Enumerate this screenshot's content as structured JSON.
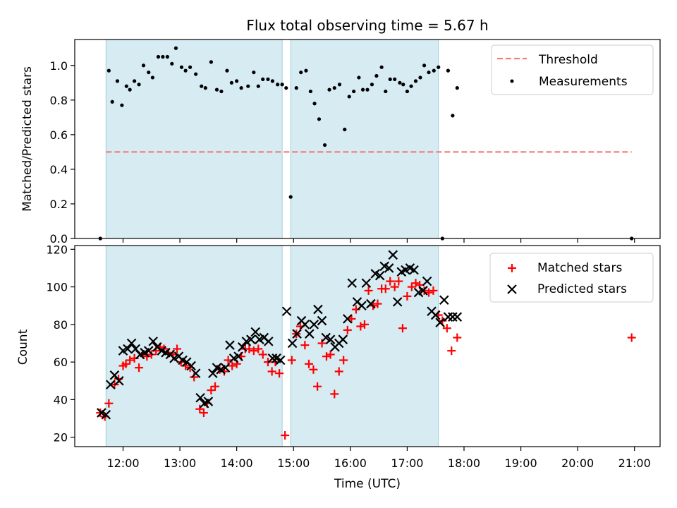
{
  "title": "Flux total observing time = 5.67 h",
  "chart_data": [
    {
      "type": "scatter",
      "panel": "top",
      "ylabel": "Matched/Predicted stars",
      "xlabel": "",
      "xlim": [
        11.15,
        21.45
      ],
      "ylim": [
        0.0,
        1.15
      ],
      "yticks": [
        0.0,
        0.2,
        0.4,
        0.6,
        0.8,
        1.0
      ],
      "ytick_labels": [
        "0.0",
        "0.2",
        "0.4",
        "0.6",
        "0.8",
        "1.0"
      ],
      "shaded_intervals": [
        [
          11.7,
          14.8
        ],
        [
          14.95,
          17.55
        ]
      ],
      "threshold": {
        "name": "Threshold",
        "value": 0.5,
        "x_range": [
          11.7,
          20.95
        ],
        "color": "#f08080"
      },
      "legend": {
        "position": "top-right",
        "entries": [
          "Threshold",
          "Measurements"
        ]
      },
      "series": [
        {
          "name": "Measurements",
          "color": "#000000",
          "marker": "dot",
          "x": [
            11.6,
            11.75,
            11.81,
            11.9,
            11.98,
            12.06,
            12.12,
            12.2,
            12.28,
            12.36,
            12.45,
            12.52,
            12.62,
            12.7,
            12.78,
            12.86,
            12.93,
            13.03,
            13.1,
            13.18,
            13.28,
            13.38,
            13.45,
            13.55,
            13.65,
            13.73,
            13.83,
            13.91,
            14.0,
            14.08,
            14.2,
            14.3,
            14.38,
            14.46,
            14.55,
            14.63,
            14.72,
            14.8,
            14.87,
            14.95,
            15.05,
            15.13,
            15.22,
            15.3,
            15.37,
            15.45,
            15.55,
            15.63,
            15.72,
            15.81,
            15.9,
            15.98,
            16.06,
            16.15,
            16.22,
            16.3,
            16.38,
            16.46,
            16.55,
            16.62,
            16.7,
            16.78,
            16.87,
            16.93,
            17.0,
            17.07,
            17.15,
            17.23,
            17.3,
            17.38,
            17.47,
            17.55,
            17.62,
            17.72,
            17.8,
            17.88,
            20.95
          ],
          "y": [
            0.0,
            0.97,
            0.79,
            0.91,
            0.77,
            0.88,
            0.86,
            0.91,
            0.89,
            1.0,
            0.96,
            0.93,
            1.05,
            1.05,
            1.05,
            1.01,
            1.1,
            0.99,
            0.97,
            0.99,
            0.95,
            0.88,
            0.87,
            1.02,
            0.86,
            0.85,
            0.97,
            0.9,
            0.91,
            0.87,
            0.88,
            0.96,
            0.88,
            0.92,
            0.92,
            0.91,
            0.89,
            0.89,
            0.87,
            0.24,
            0.87,
            0.96,
            0.97,
            0.85,
            0.78,
            0.69,
            0.54,
            0.86,
            0.87,
            0.89,
            0.63,
            0.82,
            0.85,
            0.93,
            0.86,
            0.86,
            0.89,
            0.94,
            0.99,
            0.85,
            0.92,
            0.92,
            0.9,
            0.89,
            0.85,
            0.88,
            0.91,
            0.93,
            1.0,
            0.96,
            0.97,
            0.99,
            0.0,
            0.97,
            0.71,
            0.87,
            0.0
          ]
        }
      ]
    },
    {
      "type": "scatter",
      "panel": "bottom",
      "ylabel": "Count",
      "xlabel": "Time (UTC)",
      "xlim": [
        11.15,
        21.45
      ],
      "ylim": [
        15,
        122
      ],
      "yticks": [
        20,
        40,
        60,
        80,
        100,
        120
      ],
      "ytick_labels": [
        "20",
        "40",
        "60",
        "80",
        "100",
        "120"
      ],
      "xticks": [
        12,
        13,
        14,
        15,
        16,
        17,
        18,
        19,
        20,
        21
      ],
      "xtick_labels": [
        "12:00",
        "13:00",
        "14:00",
        "15:00",
        "16:00",
        "17:00",
        "18:00",
        "19:00",
        "20:00",
        "21:00"
      ],
      "shaded_intervals": [
        [
          11.7,
          14.8
        ],
        [
          14.95,
          17.55
        ]
      ],
      "legend": {
        "position": "top-right",
        "entries": [
          "Matched stars",
          "Predicted stars"
        ]
      },
      "series": [
        {
          "name": "Matched stars",
          "color": "#ff0000",
          "marker": "plus",
          "x": [
            11.6,
            11.68,
            11.75,
            11.85,
            11.92,
            12.0,
            12.05,
            12.12,
            12.2,
            12.28,
            12.35,
            12.42,
            12.5,
            12.58,
            12.65,
            12.72,
            12.8,
            12.88,
            12.95,
            13.02,
            13.1,
            13.18,
            13.25,
            13.35,
            13.42,
            13.48,
            13.55,
            13.62,
            13.7,
            13.78,
            13.85,
            13.92,
            14.0,
            14.08,
            14.15,
            14.22,
            14.3,
            14.38,
            14.46,
            14.55,
            14.62,
            14.68,
            14.75,
            14.85,
            14.97,
            15.05,
            15.12,
            15.2,
            15.27,
            15.35,
            15.42,
            15.5,
            15.58,
            15.65,
            15.72,
            15.8,
            15.88,
            15.95,
            16.02,
            16.1,
            16.18,
            16.25,
            16.32,
            16.4,
            16.48,
            16.55,
            16.62,
            16.7,
            16.78,
            16.85,
            16.92,
            17.0,
            17.08,
            17.15,
            17.22,
            17.3,
            17.38,
            17.46,
            17.55,
            17.62,
            17.7,
            17.78,
            17.88,
            20.95
          ],
          "y": [
            33,
            31,
            38,
            48,
            51,
            58,
            59,
            61,
            62,
            57,
            64,
            63,
            64,
            66,
            68,
            67,
            65,
            64,
            67,
            60,
            58,
            57,
            52,
            35,
            33,
            38,
            45,
            47,
            56,
            55,
            61,
            58,
            59,
            63,
            67,
            67,
            66,
            67,
            64,
            60,
            55,
            60,
            54,
            21,
            61,
            75,
            79,
            69,
            59,
            56,
            47,
            70,
            63,
            64,
            43,
            55,
            61,
            77,
            83,
            88,
            79,
            80,
            98,
            90,
            91,
            99,
            99,
            103,
            100,
            103,
            78,
            95,
            100,
            102,
            101,
            98,
            97,
            98,
            85,
            82,
            78,
            66,
            73,
            73
          ]
        },
        {
          "name": "Predicted stars",
          "color": "#000000",
          "marker": "x",
          "x": [
            11.62,
            11.7,
            11.78,
            11.85,
            11.93,
            12.0,
            12.08,
            12.15,
            12.22,
            12.3,
            12.38,
            12.45,
            12.53,
            12.6,
            12.68,
            12.75,
            12.83,
            12.9,
            12.98,
            13.05,
            13.12,
            13.2,
            13.28,
            13.36,
            13.43,
            13.5,
            13.58,
            13.65,
            13.72,
            13.8,
            13.88,
            13.95,
            14.03,
            14.1,
            14.17,
            14.25,
            14.33,
            14.4,
            14.48,
            14.56,
            14.63,
            14.7,
            14.77,
            14.88,
            14.98,
            15.06,
            15.14,
            15.2,
            15.28,
            15.36,
            15.43,
            15.5,
            15.57,
            15.65,
            15.73,
            15.8,
            15.87,
            15.95,
            16.03,
            16.12,
            16.2,
            16.28,
            16.36,
            16.44,
            16.52,
            16.6,
            16.68,
            16.75,
            16.83,
            16.9,
            16.97,
            17.05,
            17.12,
            17.2,
            17.28,
            17.35,
            17.43,
            17.5,
            17.58,
            17.65,
            17.72,
            17.8,
            17.88
          ],
          "y": [
            33,
            32,
            48,
            53,
            50,
            66,
            67,
            70,
            67,
            64,
            65,
            66,
            71,
            68,
            66,
            65,
            64,
            62,
            63,
            61,
            60,
            58,
            54,
            41,
            38,
            39,
            54,
            57,
            56,
            57,
            69,
            62,
            63,
            68,
            71,
            72,
            76,
            72,
            73,
            71,
            62,
            62,
            61,
            87,
            70,
            75,
            82,
            80,
            75,
            80,
            88,
            82,
            73,
            72,
            68,
            70,
            72,
            83,
            102,
            92,
            90,
            102,
            91,
            107,
            106,
            111,
            110,
            117,
            92,
            108,
            109,
            110,
            109,
            97,
            98,
            103,
            87,
            85,
            81,
            93,
            84,
            84,
            84
          ]
        }
      ]
    }
  ]
}
